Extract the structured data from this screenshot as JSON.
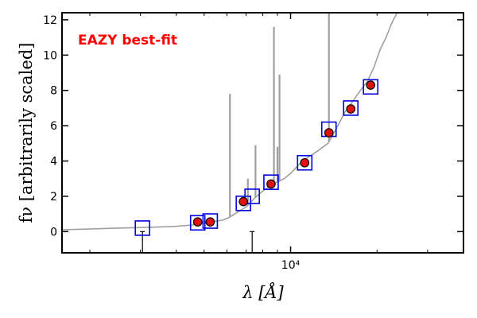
{
  "chart_data": {
    "type": "scatter",
    "title": "",
    "xlabel": "λ [Å]",
    "ylabel": "fν [arbitrarily scaled]",
    "xscale": "log",
    "xlim": [
      1600,
      40000
    ],
    "ylim": [
      -1.2,
      12.4
    ],
    "x_ticks": [
      {
        "value": 10000,
        "label": "10⁴"
      }
    ],
    "y_ticks": [
      0,
      2,
      4,
      6,
      8,
      10,
      12
    ],
    "grid": false,
    "annotation": {
      "text": "EAZY best-fit",
      "color": "#ff0000"
    },
    "colors": {
      "template": "#a0a0a0",
      "model_box": "#0000e0",
      "observed": "#e01010"
    },
    "template_spectrum": [
      [
        1600,
        0.1
      ],
      [
        2500,
        0.2
      ],
      [
        3300,
        0.25
      ],
      [
        4000,
        0.3
      ],
      [
        4700,
        0.4
      ],
      [
        5300,
        0.55
      ],
      [
        5800,
        0.65
      ],
      [
        6100,
        0.8
      ],
      [
        6400,
        1.0
      ],
      [
        7000,
        1.4
      ],
      [
        7500,
        1.9
      ],
      [
        8000,
        2.3
      ],
      [
        8700,
        2.7
      ],
      [
        9500,
        3.0
      ],
      [
        10000,
        3.3
      ],
      [
        11000,
        4.0
      ],
      [
        12500,
        4.6
      ],
      [
        13500,
        5.0
      ],
      [
        14500,
        5.9
      ],
      [
        15500,
        6.8
      ],
      [
        16500,
        7.4
      ],
      [
        17500,
        8.0
      ],
      [
        18500,
        8.5
      ],
      [
        19500,
        9.3
      ],
      [
        20500,
        10.3
      ],
      [
        21500,
        11.0
      ],
      [
        22500,
        11.8
      ],
      [
        23500,
        12.4
      ]
    ],
    "emission_lines": [
      {
        "x": 6150,
        "y": 7.8
      },
      {
        "x": 7100,
        "y": 3.0
      },
      {
        "x": 7550,
        "y": 4.9
      },
      {
        "x": 8750,
        "y": 11.6
      },
      {
        "x": 9000,
        "y": 4.8
      },
      {
        "x": 9150,
        "y": 8.9
      },
      {
        "x": 13600,
        "y": 12.4
      }
    ],
    "model_fluxes": [
      {
        "x": 3050,
        "y": 0.2
      },
      {
        "x": 4750,
        "y": 0.5
      },
      {
        "x": 5250,
        "y": 0.6
      },
      {
        "x": 6850,
        "y": 1.6
      },
      {
        "x": 7350,
        "y": 2.0
      },
      {
        "x": 8550,
        "y": 2.8
      },
      {
        "x": 11200,
        "y": 3.9
      },
      {
        "x": 13600,
        "y": 5.8
      },
      {
        "x": 16200,
        "y": 7.0
      },
      {
        "x": 19000,
        "y": 8.2
      }
    ],
    "observed_fluxes": [
      {
        "x": 4750,
        "y": 0.55
      },
      {
        "x": 5250,
        "y": 0.55
      },
      {
        "x": 6850,
        "y": 1.7
      },
      {
        "x": 8550,
        "y": 2.7
      },
      {
        "x": 11200,
        "y": 3.9
      },
      {
        "x": 13600,
        "y": 5.6
      },
      {
        "x": 16200,
        "y": 6.95
      },
      {
        "x": 19000,
        "y": 8.3
      }
    ],
    "error_bars": [
      {
        "x": 3050,
        "y": 0.0,
        "low": -1.2,
        "high": 0.0
      },
      {
        "x": 7350,
        "y": 0.0,
        "low": -1.2,
        "high": 0.0
      }
    ]
  }
}
